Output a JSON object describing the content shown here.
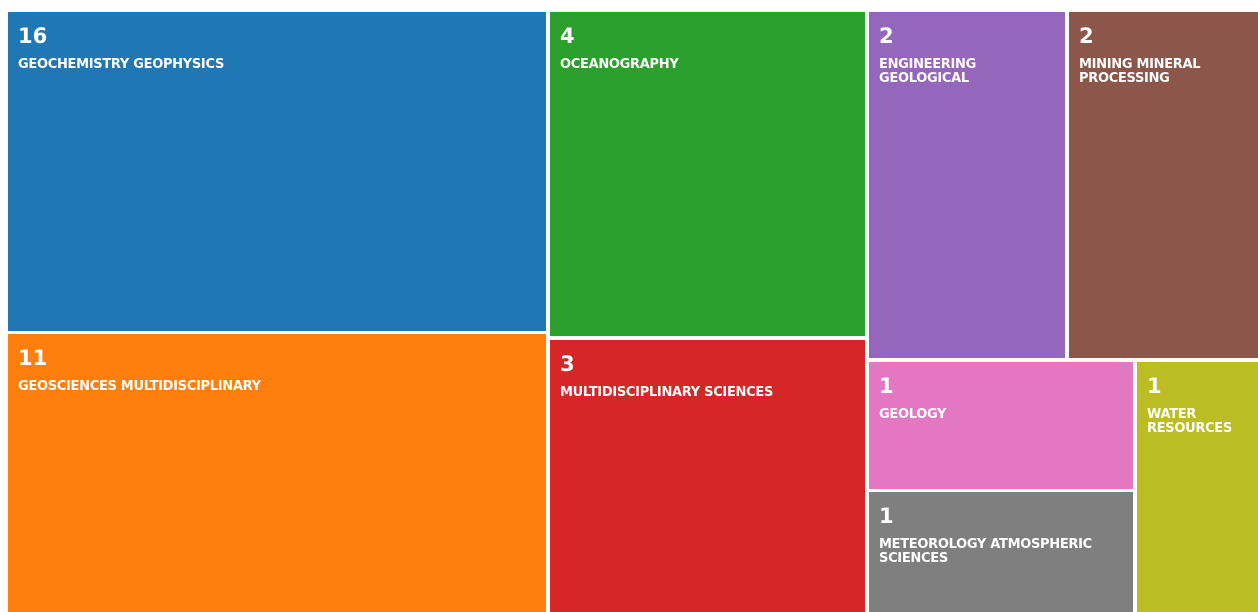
{
  "chart_data": {
    "type": "treemap",
    "categories": [
      "GEOCHEMISTRY GEOPHYSICS",
      "GEOSCIENCES MULTIDISCIPLINARY",
      "OCEANOGRAPHY",
      "MULTIDISCIPLINARY SCIENCES",
      "ENGINEERING GEOLOGICAL",
      "MINING MINERAL PROCESSING",
      "GEOLOGY",
      "METEOROLOGY ATMOSPHERIC SCIENCES",
      "WATER RESOURCES"
    ],
    "values": [
      16,
      11,
      4,
      3,
      2,
      2,
      1,
      1,
      1
    ],
    "colors": [
      "#1f77b4",
      "#ff7f0e",
      "#2ca02c",
      "#d62728",
      "#9467bd",
      "#8c564b",
      "#e377c2",
      "#7f7f7f",
      "#bcbd22"
    ]
  }
}
